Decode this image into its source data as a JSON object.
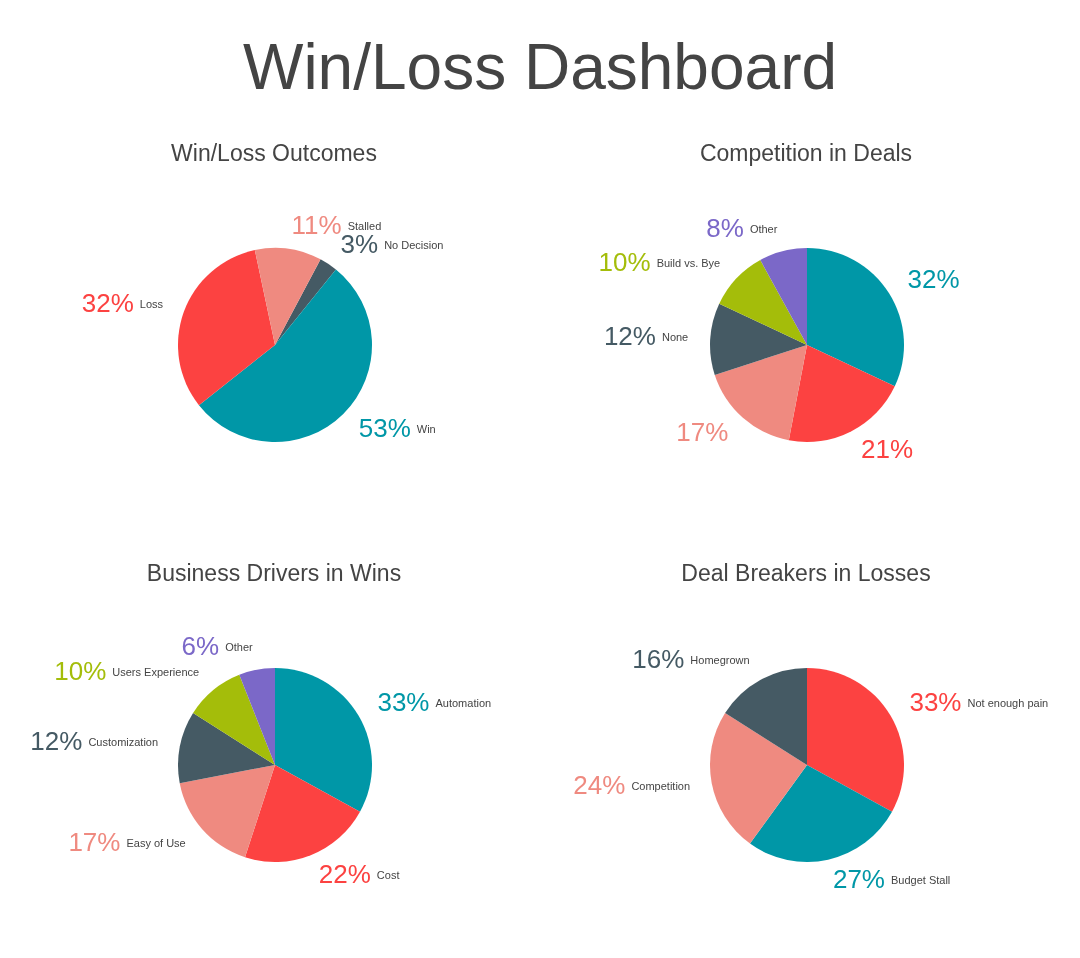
{
  "chart_data": [
    {
      "type": "pie",
      "annotations": [
        "Win/Loss Dashboard"
      ],
      "title": "Win/Loss Outcomes",
      "categories": [
        "No Decision",
        "Win",
        "Loss",
        "Stalled"
      ],
      "values": [
        3,
        53,
        32,
        11
      ],
      "value_labels": [
        "3%",
        "53%",
        "32%",
        "11%"
      ],
      "colors": [
        "#455a64",
        "#0097a7",
        "#fc4241",
        "#ef8a80"
      ],
      "legend": false
    },
    {
      "type": "pie",
      "title": "Competition in Deals",
      "categories": [
        null,
        null,
        null,
        "None",
        "Build vs. Bye",
        "Other"
      ],
      "values": [
        32,
        21,
        17,
        12,
        10,
        8
      ],
      "value_labels": [
        "32%",
        "21%",
        "17%",
        "12%",
        "10%",
        "8%"
      ],
      "colors": [
        "#0097a7",
        "#fc4241",
        "#ef8a80",
        "#455a64",
        "#a4bd0a",
        "#7b68c8"
      ],
      "legend": false
    },
    {
      "type": "pie",
      "title": "Business Drivers in Wins",
      "categories": [
        "Automation",
        "Cost",
        "Easy of Use",
        "Customization",
        "Users Experience",
        "Other"
      ],
      "values": [
        33,
        22,
        17,
        12,
        10,
        6
      ],
      "value_labels": [
        "33%",
        "22%",
        "17%",
        "12%",
        "10%",
        "6%"
      ],
      "colors": [
        "#0097a7",
        "#fc4241",
        "#ef8a80",
        "#455a64",
        "#a4bd0a",
        "#7b68c8"
      ],
      "legend": false
    },
    {
      "type": "pie",
      "title": "Deal Breakers in Losses",
      "categories": [
        "Not enough pain",
        "Budget Stall",
        "Competition",
        "Homegrown"
      ],
      "values": [
        33,
        27,
        24,
        16
      ],
      "value_labels": [
        "33%",
        "27%",
        "24%",
        "16%"
      ],
      "colors": [
        "#fc4241",
        "#0097a7",
        "#ef8a80",
        "#455a64"
      ],
      "legend": false
    }
  ]
}
